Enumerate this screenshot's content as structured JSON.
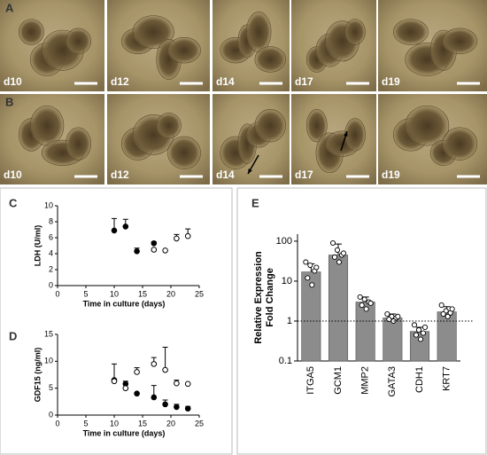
{
  "panels": [
    {
      "label": "A",
      "images": [
        "d10",
        "d12",
        "d14",
        "d17",
        "d19"
      ]
    },
    {
      "label": "B",
      "images": [
        "d10",
        "d12",
        "d14",
        "d17",
        "d19"
      ]
    }
  ],
  "chart_data": [
    {
      "type": "scatter",
      "panel_label": "C",
      "y_label": "LDH (U/ml)",
      "x_label": "Time in culture (days)",
      "xlim": [
        0,
        25
      ],
      "xticks": [
        0,
        5,
        10,
        15,
        20,
        25
      ],
      "ylim": [
        0,
        10
      ],
      "yticks": [
        0,
        2,
        4,
        6,
        8,
        10
      ],
      "series": [
        {
          "color": "#000000",
          "filled": true,
          "x": [
            10,
            12,
            14,
            17
          ],
          "values": [
            6.9,
            7.4,
            4.3,
            5.3
          ],
          "errors": [
            1.5,
            0.9,
            0.4,
            0.2
          ]
        },
        {
          "color": "#000000",
          "filled": false,
          "x": [
            17,
            19,
            21,
            23
          ],
          "values": [
            4.5,
            4.4,
            5.9,
            6.2
          ],
          "errors": [
            0,
            0,
            0.5,
            0.9
          ]
        }
      ]
    },
    {
      "type": "scatter",
      "panel_label": "D",
      "y_label": "GDF15 (ng/ml)",
      "x_label": "Time in culture (days)",
      "xlim": [
        0,
        25
      ],
      "xticks": [
        0,
        5,
        10,
        15,
        20,
        25
      ],
      "ylim": [
        0,
        15
      ],
      "yticks": [
        0,
        5,
        10,
        15
      ],
      "series": [
        {
          "color": "#000000",
          "filled": true,
          "x": [
            10,
            12,
            14,
            17,
            19,
            21,
            23
          ],
          "values": [
            6.5,
            5.8,
            4.0,
            3.3,
            2.0,
            1.5,
            1.2
          ],
          "errors": [
            3,
            0.5,
            0,
            2.2,
            0.8,
            0.5,
            0.4
          ]
        },
        {
          "color": "#000000",
          "filled": false,
          "x": [
            10,
            12,
            14,
            17,
            19,
            21,
            23
          ],
          "values": [
            6.3,
            5.0,
            8.0,
            9.5,
            8.4,
            5.9,
            5.8
          ],
          "errors": [
            0,
            0,
            0.8,
            1.2,
            4.2,
            0.6,
            0
          ]
        }
      ]
    },
    {
      "type": "bar",
      "panel_label": "E",
      "y_label": [
        "Relative Expression",
        "Fold Change"
      ],
      "log_scale": true,
      "color": "#8c8c8c",
      "reference_line": 1,
      "ylim": [
        0.1,
        150
      ],
      "yticks": [
        0.1,
        1,
        10,
        100
      ],
      "categories": [
        "ITGA5",
        "GCM1",
        "MMP2",
        "GATA3",
        "CDH1",
        "KRT7"
      ],
      "values": [
        17,
        45,
        3,
        1.2,
        0.55,
        1.7
      ],
      "errors": [
        10,
        40,
        1,
        0.3,
        0.15,
        0.6
      ],
      "points": [
        [
          30,
          25,
          18,
          12,
          8,
          22
        ],
        [
          90,
          60,
          45,
          40,
          30,
          50
        ],
        [
          4,
          3.5,
          3,
          2.5,
          2,
          2.8
        ],
        [
          1.5,
          1.3,
          1.2,
          1.1,
          1.0,
          1.3
        ],
        [
          0.8,
          0.6,
          0.5,
          0.45,
          0.35,
          0.7
        ],
        [
          2.5,
          1.8,
          1.6,
          1.5,
          1.3,
          2.0
        ]
      ]
    }
  ]
}
